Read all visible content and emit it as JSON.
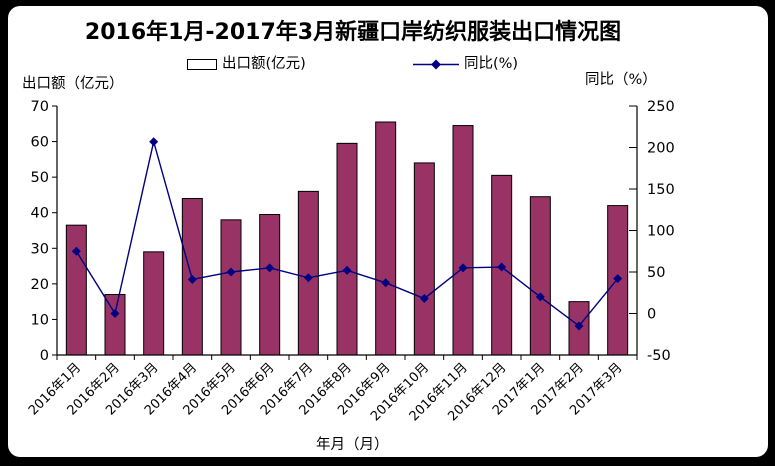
{
  "title": "2016年1月-2017年3月新疆口岸纺织服装出口情况图",
  "legend": {
    "bar_label": "出口额(亿元)",
    "line_label": "同比(%)"
  },
  "axis_titles": {
    "left": "出口额（亿元）",
    "right": "同比（%）",
    "x": "年月（月）"
  },
  "colors": {
    "bar_fill": "#993366",
    "bar_stroke": "#000000",
    "line": "#000080",
    "marker": "#000080",
    "axis": "#000000",
    "background": "#ffffff",
    "outer_frame": "#000000"
  },
  "chart_data": {
    "type": "combo-bar-line",
    "title": "2016年1月-2017年3月新疆口岸纺织服装出口情况图",
    "categories": [
      "2016年1月",
      "2016年2月",
      "2016年3月",
      "2016年4月",
      "2016年5月",
      "2016年6月",
      "2016年7月",
      "2016年8月",
      "2016年9月",
      "2016年10月",
      "2016年11月",
      "2016年12月",
      "2017年1月",
      "2017年2月",
      "2017年3月"
    ],
    "series": [
      {
        "name": "出口额(亿元)",
        "type": "bar",
        "axis": "left",
        "color": "#993366",
        "values": [
          36.5,
          17,
          29,
          44,
          38,
          39.5,
          46,
          59.5,
          65.5,
          54,
          64.5,
          50.5,
          44.5,
          15,
          42
        ]
      },
      {
        "name": "同比(%)",
        "type": "line",
        "axis": "right",
        "color": "#000080",
        "marker": "diamond",
        "values": [
          75,
          0,
          207,
          41,
          50,
          55,
          43,
          52,
          37,
          18,
          55,
          56,
          20,
          -15,
          42
        ]
      }
    ],
    "left_axis": {
      "label": "出口额（亿元）",
      "min": 0,
      "max": 70,
      "ticks": [
        0,
        10,
        20,
        30,
        40,
        50,
        60,
        70
      ]
    },
    "right_axis": {
      "label": "同比（%）",
      "min": -50,
      "max": 250,
      "ticks": [
        -50,
        0,
        50,
        100,
        150,
        200,
        250
      ]
    },
    "x_axis": {
      "label": "年月（月）",
      "tick_rotation_deg": -45
    },
    "grid": false,
    "legend_position": "top"
  }
}
